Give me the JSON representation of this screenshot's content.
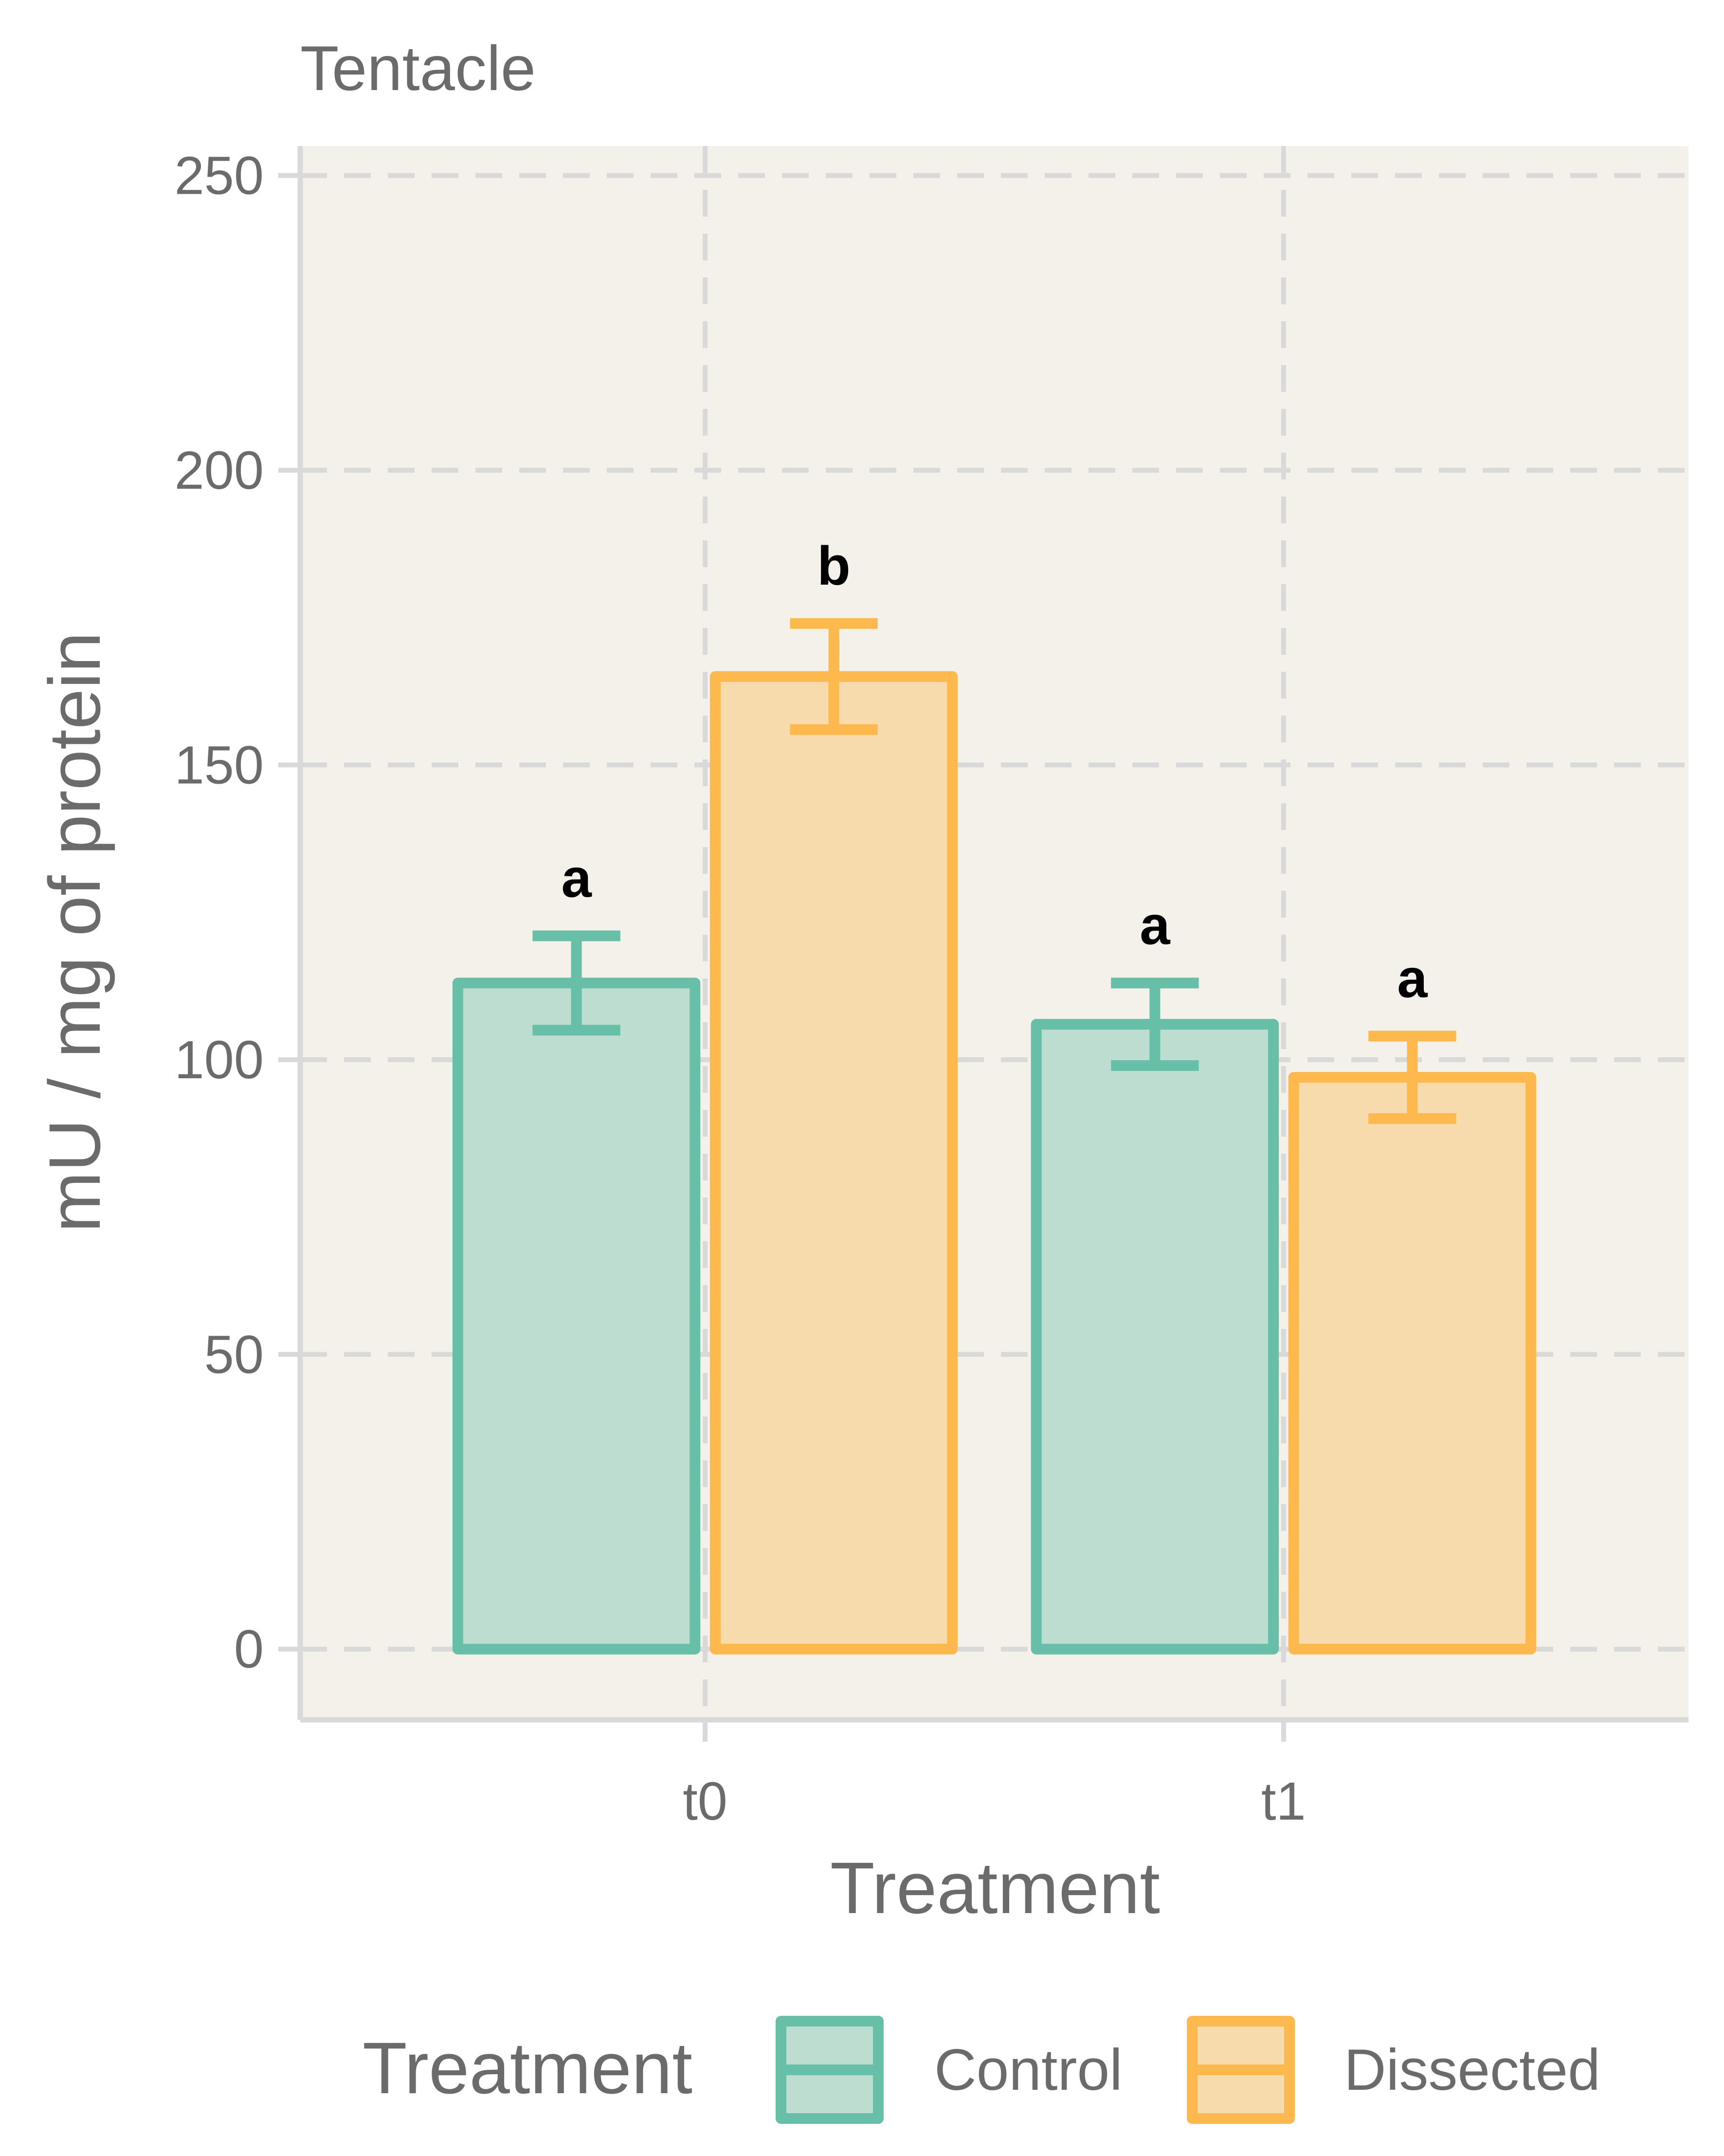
{
  "chart_data": {
    "type": "bar",
    "title": "Tentacle",
    "xlabel": "Treatment",
    "ylabel": "mU / mg  of protein",
    "categories": [
      "t0",
      "t1"
    ],
    "ylim": [
      -12,
      255
    ],
    "yticks": [
      0,
      50,
      100,
      150,
      200,
      250
    ],
    "grid": true,
    "legend_position": "bottom",
    "legend_title": "Treatment",
    "series": [
      {
        "name": "Control",
        "color": "#66BFA6",
        "fill": "#BCDDCF",
        "values": [
          113,
          106
        ],
        "errors": [
          8,
          7
        ],
        "labels": [
          "a",
          "a"
        ]
      },
      {
        "name": "Dissected",
        "color": "#FDB94E",
        "fill": "#F8DBAC",
        "values": [
          165,
          97
        ],
        "errors": [
          9,
          7
        ],
        "labels": [
          "b",
          "a"
        ]
      }
    ],
    "background": "#F4F0EA"
  }
}
